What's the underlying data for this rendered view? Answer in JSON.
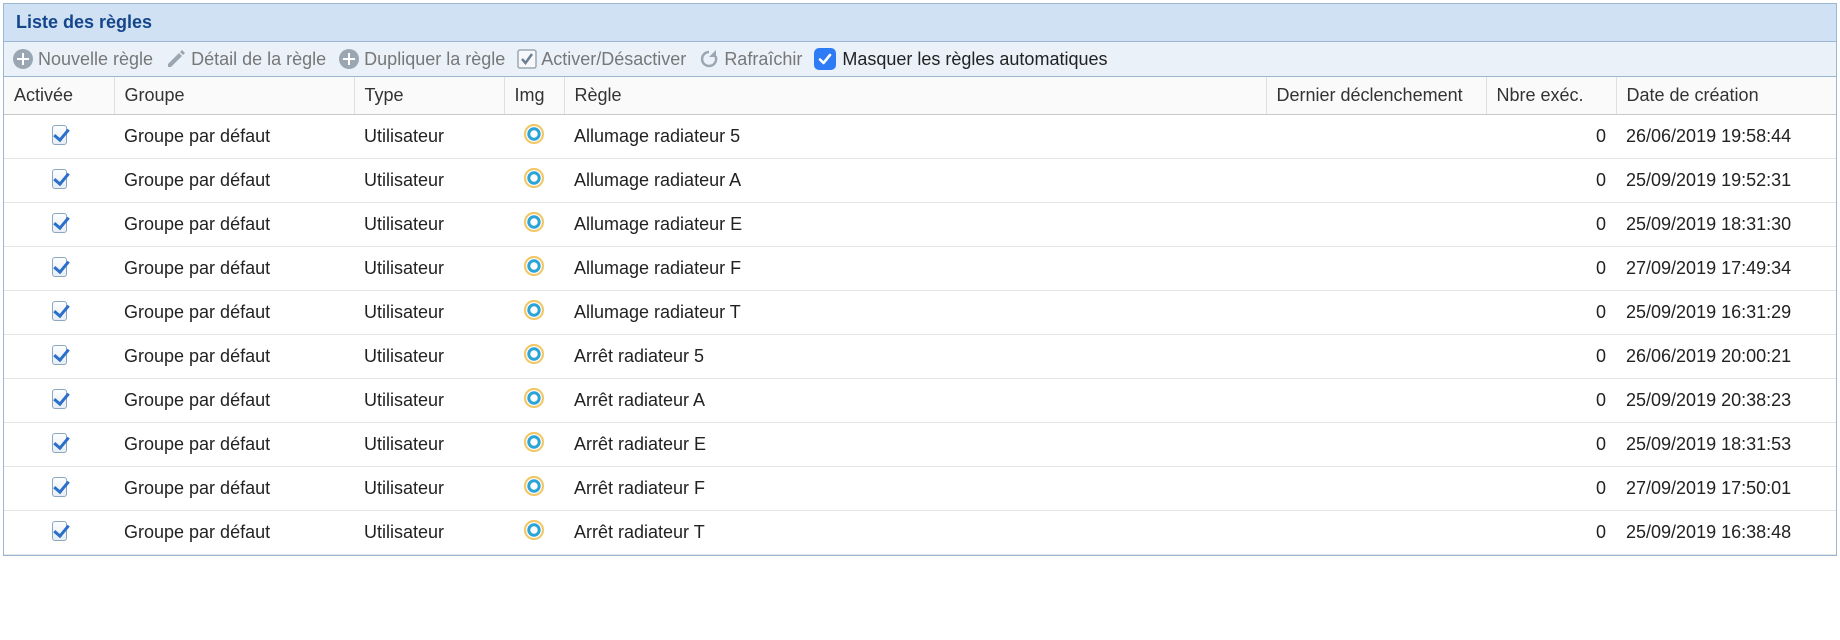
{
  "panel": {
    "title": "Liste des règles"
  },
  "toolbar": {
    "new_rule": "Nouvelle règle",
    "detail": "Détail de la règle",
    "duplicate": "Dupliquer la règle",
    "toggle": "Activer/Désactiver",
    "refresh": "Rafraîchir",
    "hide_auto": "Masquer les règles automatiques",
    "hide_auto_checked": true
  },
  "columns": {
    "activee": "Activée",
    "groupe": "Groupe",
    "type": "Type",
    "img": "Img",
    "regle": "Règle",
    "dernier": "Dernier déclenchement",
    "exec": "Nbre exéc.",
    "date": "Date de création"
  },
  "rows": [
    {
      "active": true,
      "groupe": "Groupe par défaut",
      "type": "Utilisateur",
      "regle": "Allumage radiateur 5",
      "dernier": "",
      "exec": "0",
      "date": "26/06/2019 19:58:44"
    },
    {
      "active": true,
      "groupe": "Groupe par défaut",
      "type": "Utilisateur",
      "regle": "Allumage radiateur A",
      "dernier": "",
      "exec": "0",
      "date": "25/09/2019 19:52:31"
    },
    {
      "active": true,
      "groupe": "Groupe par défaut",
      "type": "Utilisateur",
      "regle": "Allumage radiateur E",
      "dernier": "",
      "exec": "0",
      "date": "25/09/2019 18:31:30"
    },
    {
      "active": true,
      "groupe": "Groupe par défaut",
      "type": "Utilisateur",
      "regle": "Allumage radiateur F",
      "dernier": "",
      "exec": "0",
      "date": "27/09/2019 17:49:34"
    },
    {
      "active": true,
      "groupe": "Groupe par défaut",
      "type": "Utilisateur",
      "regle": "Allumage radiateur T",
      "dernier": "",
      "exec": "0",
      "date": "25/09/2019 16:31:29"
    },
    {
      "active": true,
      "groupe": "Groupe par défaut",
      "type": "Utilisateur",
      "regle": "Arrêt radiateur 5",
      "dernier": "",
      "exec": "0",
      "date": "26/06/2019 20:00:21"
    },
    {
      "active": true,
      "groupe": "Groupe par défaut",
      "type": "Utilisateur",
      "regle": "Arrêt radiateur A",
      "dernier": "",
      "exec": "0",
      "date": "25/09/2019 20:38:23"
    },
    {
      "active": true,
      "groupe": "Groupe par défaut",
      "type": "Utilisateur",
      "regle": "Arrêt radiateur E",
      "dernier": "",
      "exec": "0",
      "date": "25/09/2019 18:31:53"
    },
    {
      "active": true,
      "groupe": "Groupe par défaut",
      "type": "Utilisateur",
      "regle": "Arrêt radiateur F",
      "dernier": "",
      "exec": "0",
      "date": "27/09/2019 17:50:01"
    },
    {
      "active": true,
      "groupe": "Groupe par défaut",
      "type": "Utilisateur",
      "regle": "Arrêt radiateur T",
      "dernier": "",
      "exec": "0",
      "date": "25/09/2019 16:38:48"
    }
  ],
  "styling": {
    "type": "table",
    "header_bg": "#cfe1f3",
    "header_text": "#15468c",
    "toolbar_bg": "#eaf1f9",
    "border": "#9bb7d4",
    "row_border": "#e6e6e6",
    "font_family": "Arial",
    "font_size_pt": 13,
    "icon_ring_outer": "#f0c96a",
    "icon_ring_inner": "#2aa3d8",
    "checkbox_accent": "#2a6fc9",
    "blue_checkbox_bg": "#2e7bf6"
  }
}
